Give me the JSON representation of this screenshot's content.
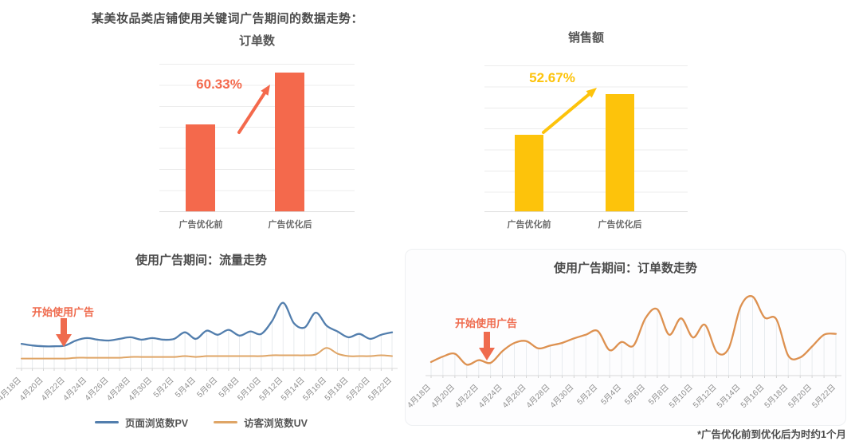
{
  "header": {
    "title": "某美妆品类店铺使用关键词广告期间的数据走势："
  },
  "footnote": "*广告优化前到优化后为时约1个月",
  "annotation_color": "#ef6b4e",
  "chart_data": [
    {
      "id": "orders_bar",
      "type": "bar",
      "title": "订单数",
      "categories": [
        "广告优化前",
        "广告优化后"
      ],
      "values": [
        100,
        160.33
      ],
      "ylim": [
        0,
        170
      ],
      "color": "#f4694c",
      "growth_label": "60.33%",
      "growth_color": "#f4694c",
      "grid": "horizontal"
    },
    {
      "id": "sales_bar",
      "type": "bar",
      "title": "销售额",
      "categories": [
        "广告优化前",
        "广告优化后"
      ],
      "values": [
        100,
        152.67
      ],
      "ylim": [
        0,
        190
      ],
      "color": "#fdc30b",
      "growth_label": "52.67%",
      "growth_color": "#fdc30b",
      "grid": "horizontal"
    },
    {
      "id": "traffic_line",
      "type": "line",
      "title": "使用广告期间：流量走势",
      "annotation": "开始使用广告",
      "annotation_x": "4月22日",
      "x_labels": [
        "4月18日",
        "4月20日",
        "4月22日",
        "4月24日",
        "4月26日",
        "4月28日",
        "4月30日",
        "5月2日",
        "5月4日",
        "5月6日",
        "5月8日",
        "5月10日",
        "5月12日",
        "5月14日",
        "5月16日",
        "5月18日",
        "5月20日",
        "5月22日"
      ],
      "n_points": 35,
      "ylim": [
        0,
        100
      ],
      "legend_position": "bottom",
      "series": [
        {
          "name": "页面浏览数PV",
          "color": "#527ead",
          "values": [
            30,
            28,
            27,
            27,
            28,
            34,
            37,
            35,
            34,
            36,
            38,
            35,
            37,
            35,
            36,
            44,
            36,
            46,
            41,
            47,
            40,
            45,
            42,
            58,
            80,
            55,
            50,
            68,
            52,
            45,
            38,
            42,
            36,
            41,
            44
          ]
        },
        {
          "name": "访客浏览数UV",
          "color": "#dfa566",
          "values": [
            12,
            12,
            12,
            12,
            12,
            13,
            13,
            13,
            13,
            13,
            14,
            14,
            14,
            14,
            14,
            15,
            14,
            15,
            15,
            15,
            15,
            15,
            15,
            16,
            16,
            16,
            16,
            17,
            25,
            18,
            15,
            15,
            15,
            16,
            15
          ]
        }
      ]
    },
    {
      "id": "orders_line",
      "type": "line",
      "title": "使用广告期间：订单数走势",
      "annotation": "开始使用广告",
      "annotation_x": "4月22日",
      "x_labels": [
        "4月18日",
        "4月20日",
        "4月22日",
        "4月24日",
        "4月26日",
        "4月28日",
        "4月30日",
        "5月2日",
        "5月4日",
        "5月6日",
        "5月8日",
        "5月10日",
        "5月12日",
        "5月14日",
        "5月16日",
        "5月18日",
        "5月20日",
        "5月22日"
      ],
      "n_points": 35,
      "ylim": [
        0,
        100
      ],
      "legend_position": "none",
      "series": [
        {
          "name": "订单数",
          "color": "#dd9150",
          "values": [
            15,
            21,
            24,
            12,
            17,
            14,
            27,
            36,
            38,
            30,
            33,
            36,
            41,
            45,
            49,
            28,
            37,
            33,
            63,
            73,
            45,
            63,
            42,
            56,
            26,
            30,
            76,
            87,
            64,
            62,
            22,
            20,
            32,
            45,
            46
          ]
        }
      ]
    }
  ]
}
